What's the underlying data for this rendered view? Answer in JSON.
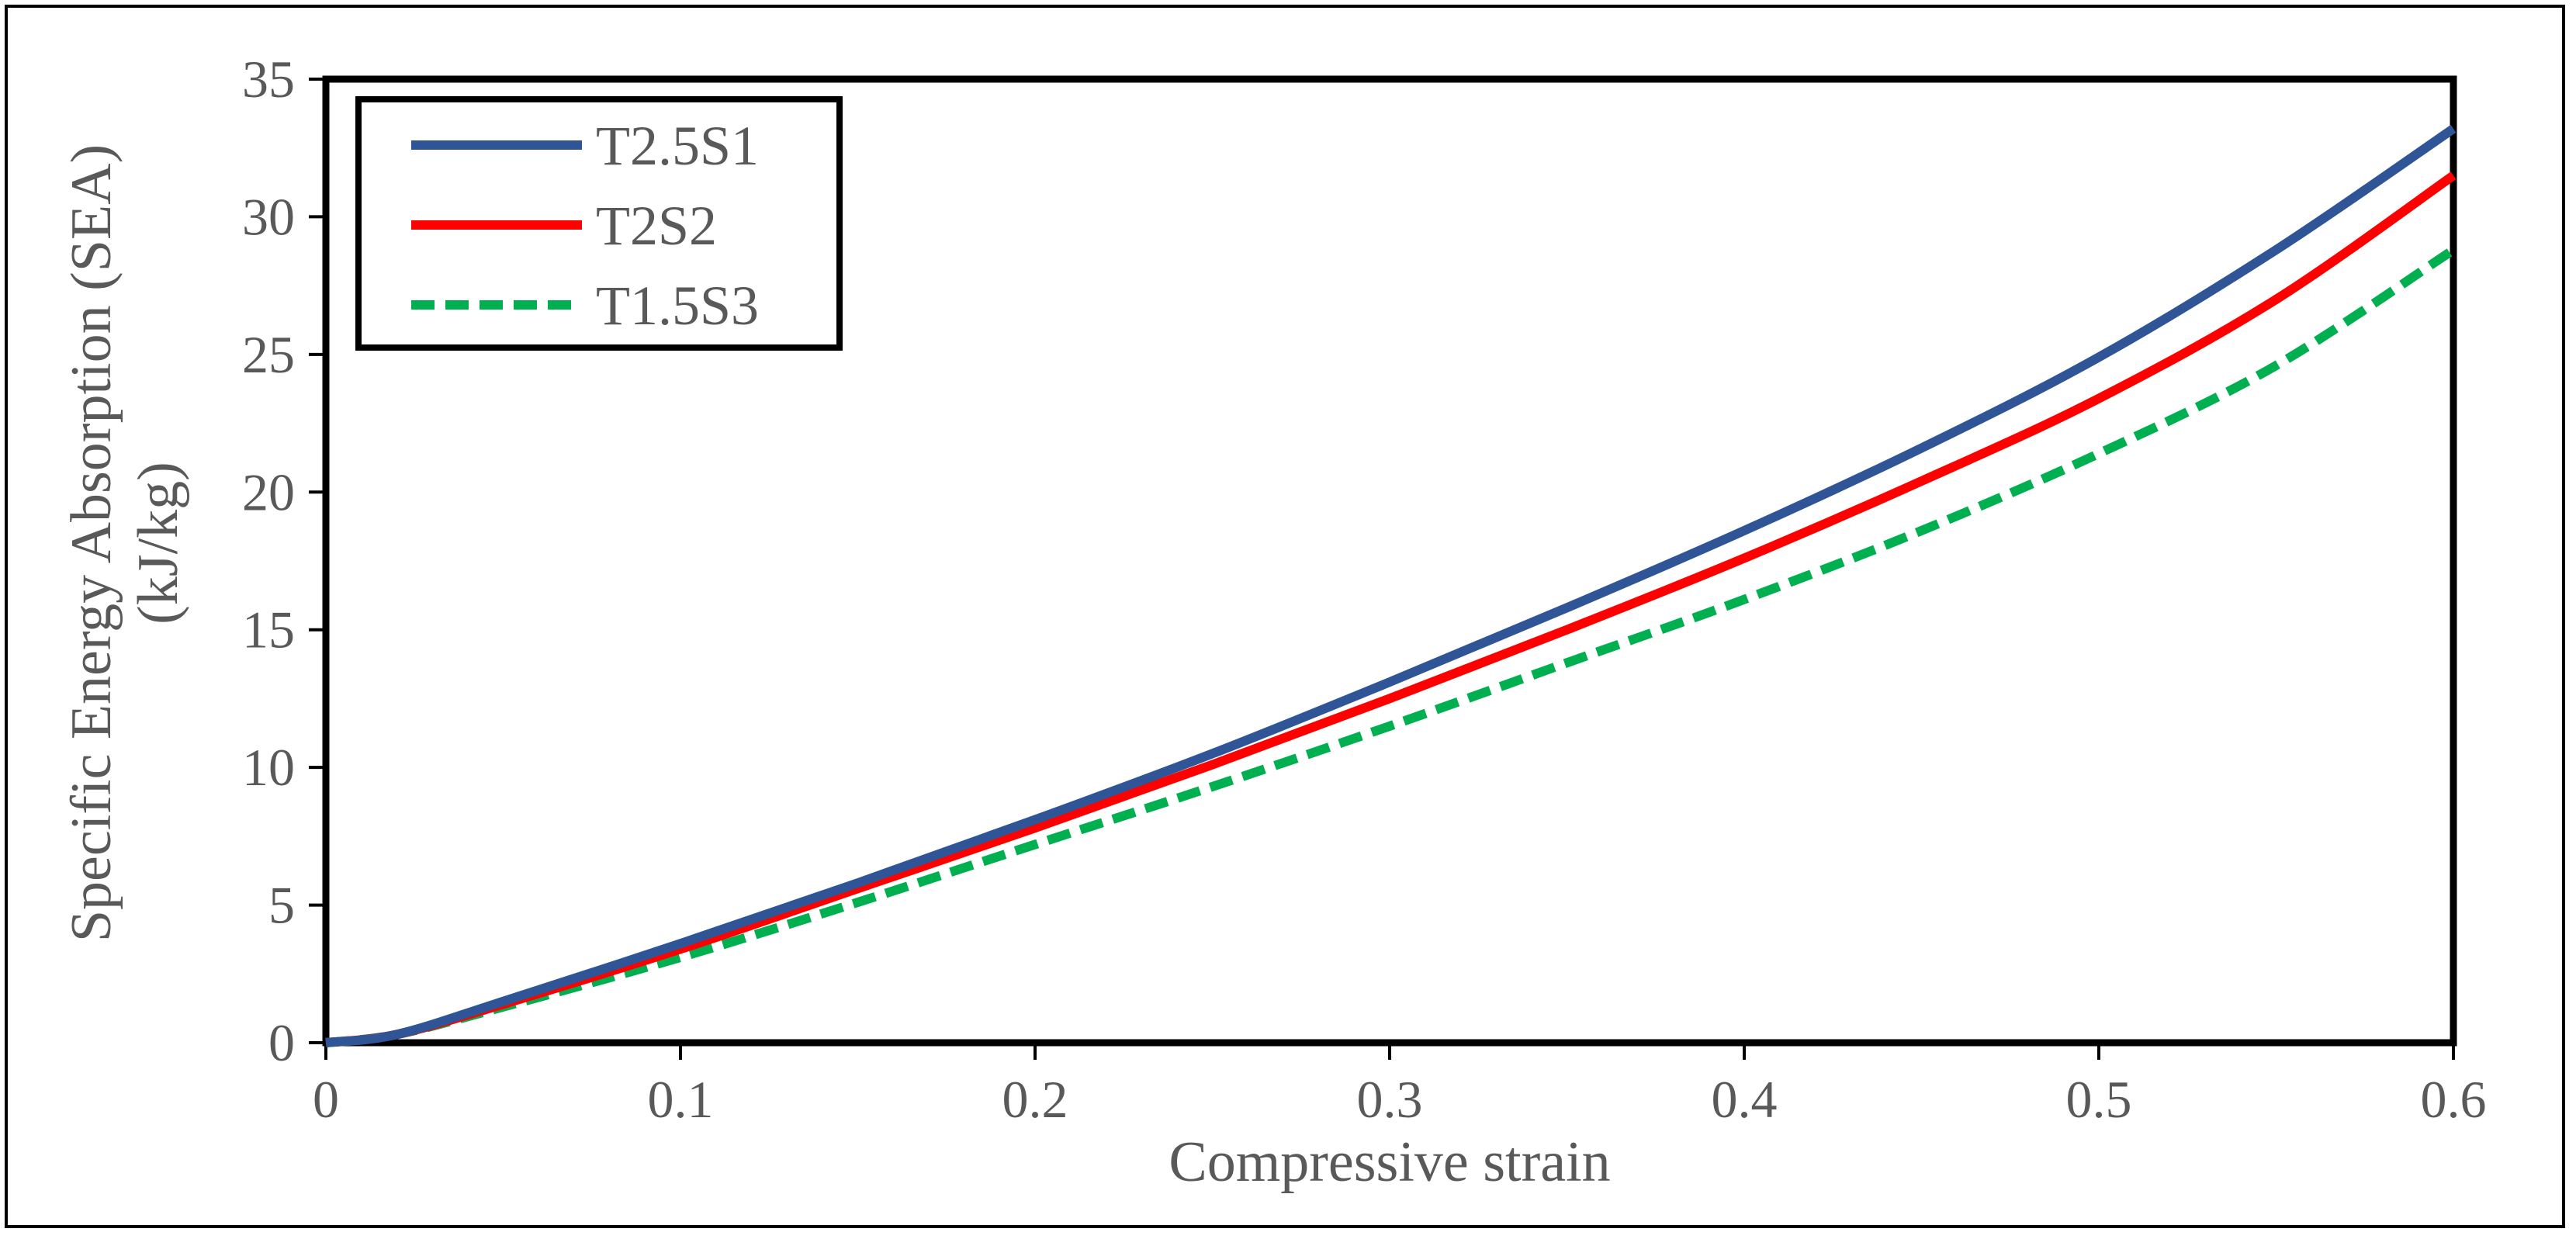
{
  "chart_data": {
    "type": "line",
    "title": "",
    "xlabel": "Compressive strain",
    "ylabel_line1": "Specific Energy Absorption (SEA)",
    "ylabel_line2": "(kJ/kg)",
    "xlim": [
      0,
      0.6
    ],
    "ylim": [
      0,
      35
    ],
    "xticks": [
      "0",
      "0.1",
      "0.2",
      "0.3",
      "0.4",
      "0.5",
      "0.6"
    ],
    "yticks": [
      "0",
      "5",
      "10",
      "15",
      "20",
      "25",
      "30",
      "35"
    ],
    "grid": false,
    "legend_position": "top-left",
    "x": [
      0,
      0.02,
      0.05,
      0.1,
      0.15,
      0.2,
      0.25,
      0.3,
      0.35,
      0.4,
      0.45,
      0.5,
      0.55,
      0.6
    ],
    "series": [
      {
        "name": "T2.5S1",
        "color": "#2F5597",
        "dash": "solid",
        "values": [
          0,
          0.3,
          1.5,
          3.6,
          5.8,
          8.1,
          10.5,
          13.1,
          15.8,
          18.6,
          21.6,
          24.9,
          28.8,
          33.2
        ]
      },
      {
        "name": "T2S2",
        "color": "#FF0000",
        "dash": "solid",
        "values": [
          0,
          0.3,
          1.4,
          3.4,
          5.6,
          7.8,
          10.1,
          12.5,
          15.0,
          17.6,
          20.4,
          23.4,
          27.0,
          31.5
        ]
      },
      {
        "name": "T1.5S3",
        "color": "#00B050",
        "dash": "dashed",
        "values": [
          0,
          0.3,
          1.3,
          3.1,
          5.1,
          7.2,
          9.3,
          11.5,
          13.8,
          16.1,
          18.6,
          21.4,
          24.6,
          28.8
        ]
      }
    ]
  }
}
